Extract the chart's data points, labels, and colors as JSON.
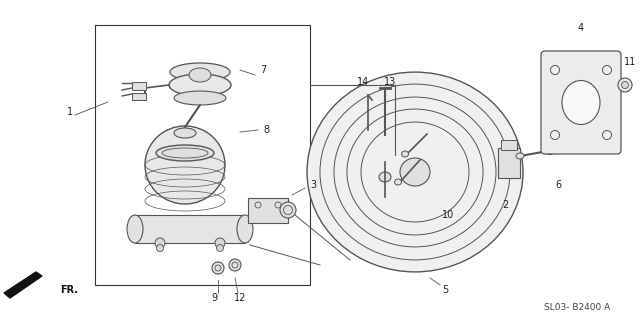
{
  "background_color": "#ffffff",
  "line_color": "#555555",
  "dark_color": "#333333",
  "watermark": "SL03- B2400 A",
  "direction_label": "FR.",
  "fig_w": 6.4,
  "fig_h": 3.2,
  "dpi": 100
}
